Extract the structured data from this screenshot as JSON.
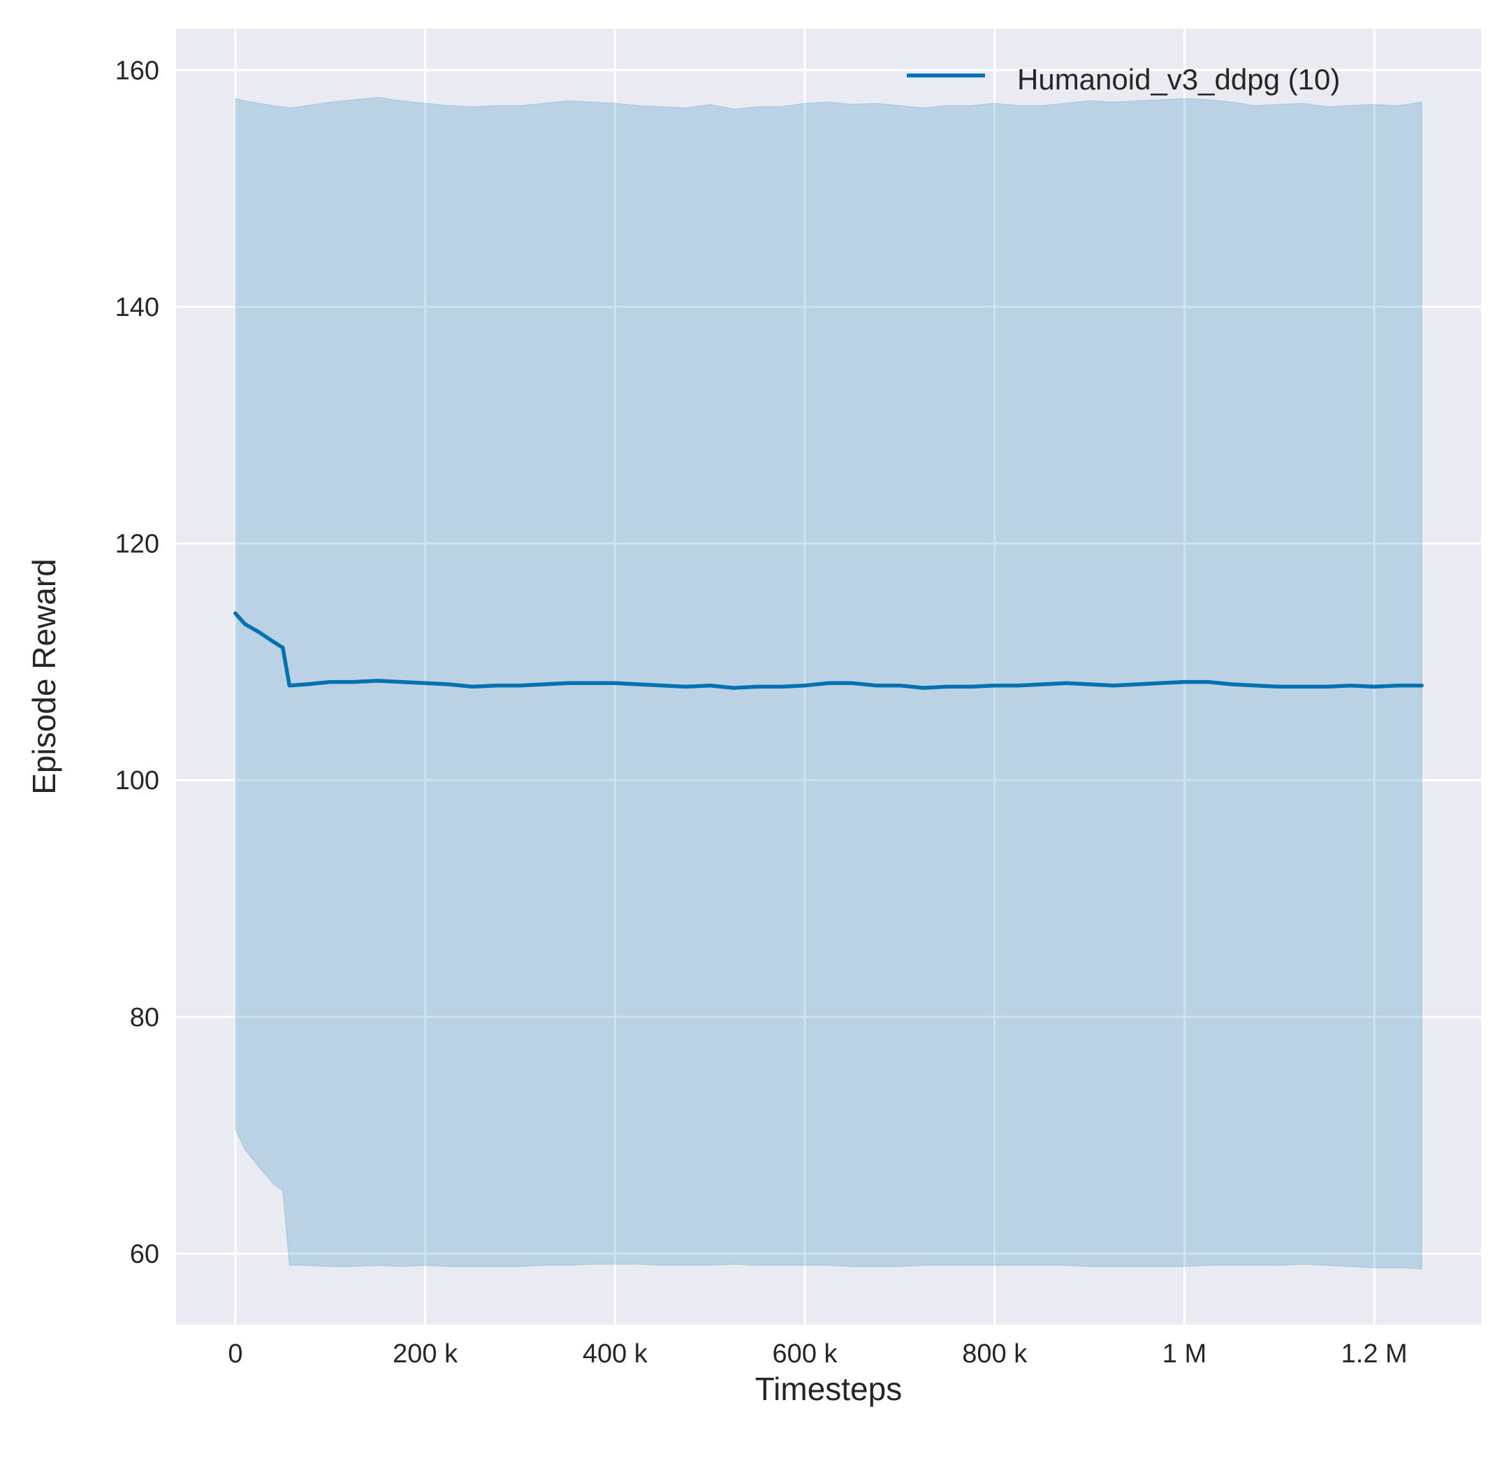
{
  "chart_data": {
    "type": "line",
    "title": "",
    "xlabel": "Timesteps",
    "ylabel": "Episode Reward",
    "xlim": [
      -62500,
      1312500
    ],
    "ylim": [
      54,
      163.5
    ],
    "grid": true,
    "legend_placement": "top-right",
    "colors": {
      "line": "#0072B2",
      "band": "#0072B2",
      "background": "#EAEAF2",
      "grid": "#FFFFFF"
    },
    "x_ticks": [
      {
        "value": 0,
        "label": "0"
      },
      {
        "value": 200000,
        "label": "200 k"
      },
      {
        "value": 400000,
        "label": "400 k"
      },
      {
        "value": 600000,
        "label": "600 k"
      },
      {
        "value": 800000,
        "label": "800 k"
      },
      {
        "value": 1000000,
        "label": "1 M"
      },
      {
        "value": 1200000,
        "label": "1.2 M"
      }
    ],
    "y_ticks": [
      {
        "value": 60,
        "label": "60"
      },
      {
        "value": 80,
        "label": "80"
      },
      {
        "value": 100,
        "label": "100"
      },
      {
        "value": 120,
        "label": "120"
      },
      {
        "value": 140,
        "label": "140"
      },
      {
        "value": 160,
        "label": "160"
      }
    ],
    "series": [
      {
        "name": "Humanoid_v3_ddpg (10)",
        "x": [
          0,
          10000,
          25000,
          40000,
          50000,
          57000,
          75000,
          100000,
          125000,
          150000,
          175000,
          200000,
          225000,
          250000,
          275000,
          300000,
          325000,
          350000,
          375000,
          400000,
          425000,
          450000,
          475000,
          500000,
          525000,
          550000,
          575000,
          600000,
          625000,
          650000,
          675000,
          700000,
          725000,
          750000,
          775000,
          800000,
          825000,
          850000,
          875000,
          900000,
          925000,
          950000,
          975000,
          1000000,
          1025000,
          1050000,
          1075000,
          1100000,
          1125000,
          1150000,
          1175000,
          1200000,
          1225000,
          1250000
        ],
        "mean": [
          114.1,
          113.2,
          112.5,
          111.7,
          111.2,
          108.0,
          108.1,
          108.3,
          108.3,
          108.4,
          108.3,
          108.2,
          108.1,
          107.9,
          108.0,
          108.0,
          108.1,
          108.2,
          108.2,
          108.2,
          108.1,
          108.0,
          107.9,
          108.0,
          107.8,
          107.9,
          107.9,
          108.0,
          108.2,
          108.2,
          108.0,
          108.0,
          107.8,
          107.9,
          107.9,
          108.0,
          108.0,
          108.1,
          108.2,
          108.1,
          108.0,
          108.1,
          108.2,
          108.3,
          108.3,
          108.1,
          108.0,
          107.9,
          107.9,
          107.9,
          108.0,
          107.9,
          108.0,
          108.0
        ],
        "upper": [
          157.6,
          157.4,
          157.2,
          157.0,
          156.9,
          156.8,
          157.0,
          157.3,
          157.5,
          157.7,
          157.4,
          157.2,
          157.0,
          156.9,
          157.0,
          157.0,
          157.2,
          157.4,
          157.3,
          157.2,
          157.0,
          156.9,
          156.8,
          157.1,
          156.7,
          156.9,
          156.9,
          157.2,
          157.3,
          157.1,
          157.2,
          157.0,
          156.8,
          157.0,
          157.0,
          157.2,
          157.0,
          157.0,
          157.2,
          157.4,
          157.3,
          157.4,
          157.5,
          157.6,
          157.5,
          157.3,
          157.0,
          157.1,
          157.2,
          156.9,
          157.0,
          157.1,
          157.0,
          157.3
        ],
        "lower": [
          70.5,
          68.8,
          67.3,
          65.9,
          65.3,
          59.0,
          59.0,
          58.9,
          58.9,
          59.0,
          58.9,
          59.0,
          58.9,
          58.9,
          58.9,
          58.9,
          59.0,
          59.0,
          59.1,
          59.1,
          59.1,
          59.0,
          59.0,
          59.0,
          59.1,
          59.0,
          59.0,
          59.0,
          59.0,
          58.9,
          58.9,
          58.9,
          59.0,
          59.0,
          59.0,
          59.0,
          59.0,
          59.0,
          59.0,
          58.9,
          58.9,
          58.9,
          58.9,
          58.9,
          59.0,
          59.0,
          59.0,
          59.0,
          59.1,
          59.0,
          58.9,
          58.8,
          58.8,
          58.7
        ]
      }
    ]
  }
}
